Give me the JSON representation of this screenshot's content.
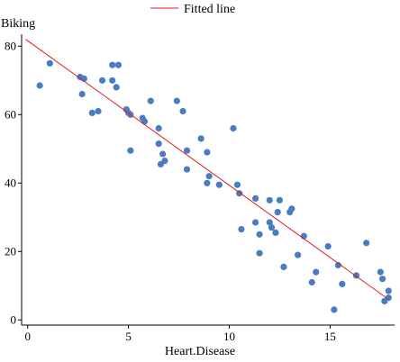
{
  "chart_data": {
    "type": "scatter",
    "title": "",
    "xlabel": "Heart.Disease",
    "ylabel": "Biking",
    "xlim": [
      -0.3,
      18.2
    ],
    "ylim": [
      -1.5,
      83.5
    ],
    "xticks": [
      0,
      5,
      10,
      15
    ],
    "yticks": [
      0,
      20,
      40,
      60,
      80
    ],
    "grid": false,
    "legend": {
      "position": "top-center",
      "entries": [
        {
          "label": "Fitted line",
          "color": "#e31a1c",
          "kind": "line"
        }
      ]
    },
    "point_color": "#4a7cc2",
    "line_color": "#e31a1c",
    "points": [
      [
        0.6,
        68.5
      ],
      [
        1.1,
        75.0
      ],
      [
        2.6,
        71.0
      ],
      [
        2.8,
        70.5
      ],
      [
        2.7,
        66.0
      ],
      [
        3.2,
        60.5
      ],
      [
        3.5,
        61.0
      ],
      [
        3.7,
        70.0
      ],
      [
        4.2,
        74.5
      ],
      [
        4.5,
        74.5
      ],
      [
        4.2,
        70.0
      ],
      [
        4.4,
        68.0
      ],
      [
        4.9,
        61.5
      ],
      [
        5.0,
        60.5
      ],
      [
        5.1,
        60.0
      ],
      [
        5.1,
        49.5
      ],
      [
        5.7,
        59.0
      ],
      [
        5.8,
        58.0
      ],
      [
        6.1,
        64.0
      ],
      [
        6.5,
        56.0
      ],
      [
        6.5,
        51.5
      ],
      [
        6.6,
        45.5
      ],
      [
        6.7,
        48.5
      ],
      [
        6.8,
        46.5
      ],
      [
        7.4,
        64.0
      ],
      [
        7.7,
        61.0
      ],
      [
        7.9,
        49.5
      ],
      [
        7.9,
        44.0
      ],
      [
        8.6,
        53.0
      ],
      [
        8.9,
        49.0
      ],
      [
        8.9,
        40.0
      ],
      [
        9.0,
        42.0
      ],
      [
        9.5,
        39.5
      ],
      [
        10.2,
        56.0
      ],
      [
        10.4,
        39.5
      ],
      [
        10.5,
        37.0
      ],
      [
        10.6,
        26.5
      ],
      [
        11.3,
        35.5
      ],
      [
        11.3,
        28.5
      ],
      [
        11.5,
        25.0
      ],
      [
        11.5,
        19.5
      ],
      [
        12.0,
        35.0
      ],
      [
        12.0,
        28.5
      ],
      [
        12.1,
        27.0
      ],
      [
        12.3,
        25.5
      ],
      [
        12.4,
        31.5
      ],
      [
        12.5,
        35.0
      ],
      [
        12.7,
        15.5
      ],
      [
        13.0,
        31.5
      ],
      [
        13.1,
        32.5
      ],
      [
        13.4,
        19.0
      ],
      [
        13.7,
        24.5
      ],
      [
        14.1,
        11.0
      ],
      [
        14.3,
        14.0
      ],
      [
        14.9,
        21.5
      ],
      [
        15.2,
        3.0
      ],
      [
        15.4,
        16.0
      ],
      [
        15.6,
        10.5
      ],
      [
        16.3,
        13.0
      ],
      [
        16.8,
        22.5
      ],
      [
        17.5,
        14.0
      ],
      [
        17.6,
        12.0
      ],
      [
        17.7,
        5.5
      ],
      [
        17.9,
        6.5
      ],
      [
        17.9,
        8.5
      ]
    ],
    "fitted_line": {
      "x": [
        -0.1,
        17.9
      ],
      "y": [
        82.0,
        6.0
      ]
    }
  }
}
